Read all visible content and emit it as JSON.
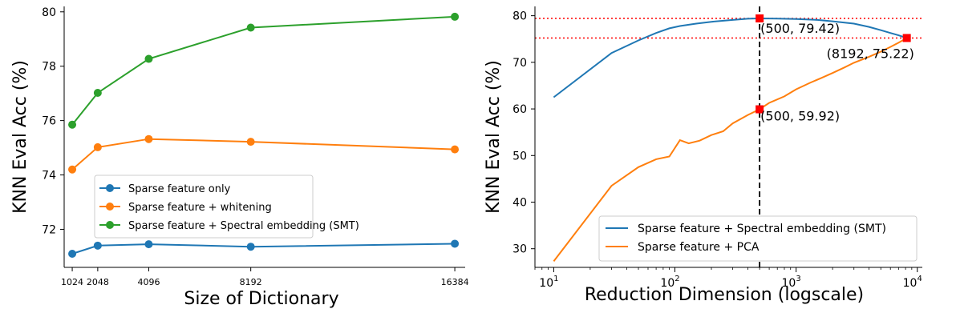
{
  "chart_data": [
    {
      "type": "line",
      "xscale": "linear",
      "xlabel": "Size of Dictionary",
      "ylabel": "KNN Eval Acc (%)",
      "xlim": [
        700,
        16800
      ],
      "ylim": [
        70.6,
        80.2
      ],
      "xticks": [
        1024,
        2048,
        4096,
        8192,
        16384
      ],
      "xtick_labels": [
        "1024",
        "2048",
        "4096",
        "8192",
        "16384"
      ],
      "yticks": [
        72,
        74,
        76,
        78,
        80
      ],
      "ytick_labels": [
        "72",
        "74",
        "76",
        "78",
        "80"
      ],
      "legend_position": "lower-center",
      "x": [
        1024,
        2048,
        4096,
        8192,
        16384
      ],
      "series": [
        {
          "name": "Sparse feature only",
          "color": "#1f77b4",
          "values": [
            71.1,
            71.4,
            71.45,
            71.36,
            71.47
          ]
        },
        {
          "name": "Sparse feature + whitening",
          "color": "#ff7f0e",
          "values": [
            74.2,
            75.02,
            75.32,
            75.22,
            74.94
          ]
        },
        {
          "name": "Sparse feature + Spectral embedding (SMT)",
          "color": "#2ca02c",
          "values": [
            75.85,
            77.02,
            78.27,
            79.42,
            79.82
          ]
        }
      ]
    },
    {
      "type": "line",
      "xscale": "log",
      "xlabel": "Reduction Dimension (logscale)",
      "ylabel": "KNN Eval Acc (%)",
      "xlim": [
        7,
        11000
      ],
      "ylim": [
        26,
        82
      ],
      "xticks": [
        10,
        100,
        1000,
        10000
      ],
      "xtick_labels": [
        "10",
        "10",
        "10",
        "10"
      ],
      "xtick_exponents": [
        "1",
        "2",
        "3",
        "4"
      ],
      "yticks": [
        30,
        40,
        50,
        60,
        70,
        80
      ],
      "ytick_labels": [
        "30",
        "40",
        "50",
        "60",
        "70",
        "80"
      ],
      "legend_position": "lower-right",
      "series": [
        {
          "name": "Sparse feature + Spectral embedding (SMT)",
          "color": "#1f77b4",
          "x": [
            10,
            30,
            50,
            70,
            90,
            110,
            150,
            200,
            300,
            400,
            500,
            700,
            1000,
            1500,
            2000,
            3000,
            4000,
            5000,
            6000,
            7000,
            8192
          ],
          "y": [
            62.5,
            72.0,
            74.7,
            76.3,
            77.3,
            77.8,
            78.3,
            78.7,
            79.1,
            79.35,
            79.42,
            79.38,
            79.3,
            79.1,
            78.8,
            78.3,
            77.6,
            76.9,
            76.3,
            75.8,
            75.22
          ]
        },
        {
          "name": "Sparse feature + PCA",
          "color": "#ff7f0e",
          "x": [
            10,
            30,
            50,
            70,
            90,
            110,
            130,
            160,
            200,
            250,
            300,
            400,
            500,
            600,
            800,
            1000,
            1300,
            1600,
            2000,
            2500,
            3000,
            4000,
            5000,
            6000,
            7000,
            8192
          ],
          "y": [
            27.3,
            43.5,
            47.5,
            49.2,
            49.8,
            53.3,
            52.6,
            53.2,
            54.4,
            55.2,
            56.9,
            58.7,
            59.92,
            61.3,
            62.7,
            64.2,
            65.6,
            66.6,
            67.7,
            68.9,
            69.9,
            71.2,
            72.3,
            73.3,
            74.2,
            75.22
          ]
        }
      ],
      "markers": [
        {
          "x": 500,
          "y": 79.42,
          "label": "(500, 79.42)"
        },
        {
          "x": 500,
          "y": 59.92,
          "label": "(500, 59.92)"
        },
        {
          "x": 8192,
          "y": 75.22,
          "label": "(8192, 75.22)"
        }
      ],
      "hlines": [
        79.42,
        75.22
      ],
      "vline": 500,
      "reference_color": "#ff0000"
    }
  ]
}
